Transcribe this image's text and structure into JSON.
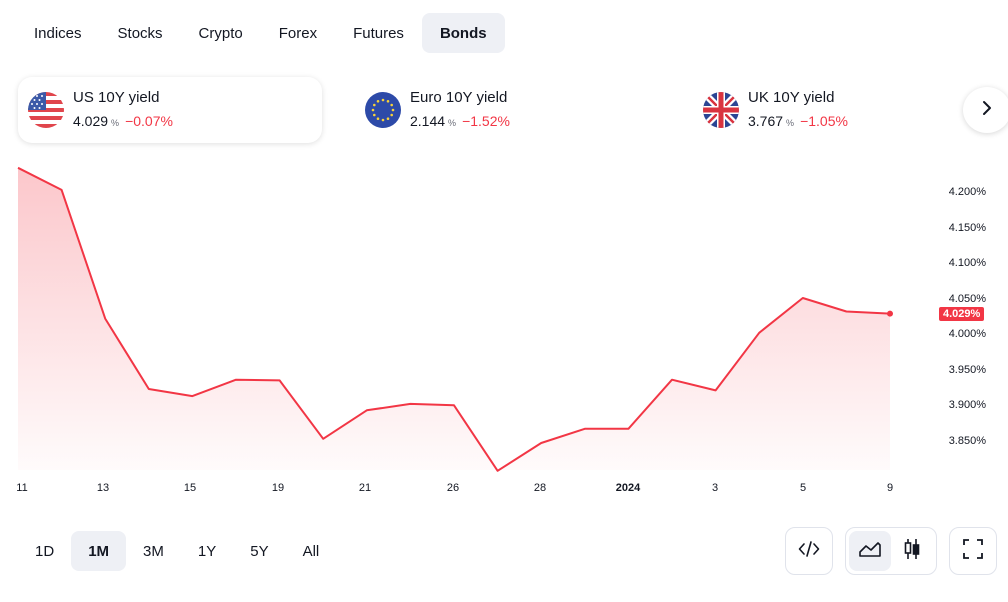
{
  "tabs": [
    {
      "label": "Indices"
    },
    {
      "label": "Stocks"
    },
    {
      "label": "Crypto"
    },
    {
      "label": "Forex"
    },
    {
      "label": "Futures"
    },
    {
      "label": "Bonds",
      "active": true
    }
  ],
  "cards": [
    {
      "name": "US 10Y yield",
      "value": "4.029",
      "unit": "%",
      "change": "−0.07%",
      "flag": "us-flag-icon",
      "active": true
    },
    {
      "name": "Euro 10Y yield",
      "value": "2.144",
      "unit": "%",
      "change": "−1.52%",
      "flag": "eu-flag-icon"
    },
    {
      "name": "UK 10Y yield",
      "value": "3.767",
      "unit": "%",
      "change": "−1.05%",
      "flag": "uk-flag-icon"
    }
  ],
  "colors": {
    "line": "#f23645",
    "accent_bg": "#eef0f5",
    "negative": "#f23645"
  },
  "chart_data": {
    "type": "area",
    "x_tick_labels": [
      "11",
      "13",
      "15",
      "19",
      "21",
      "26",
      "28",
      "2024",
      "3",
      "5",
      "9"
    ],
    "y_tick_labels": [
      "4.200%",
      "4.150%",
      "4.100%",
      "4.050%",
      "4.000%",
      "3.950%",
      "3.900%",
      "3.850%"
    ],
    "ylim": [
      3.795,
      4.245
    ],
    "last_price_label": "4.029%",
    "series": [
      {
        "values": [
          4.234,
          4.203,
          4.022,
          3.923,
          3.913,
          3.936,
          3.935,
          3.853,
          3.893,
          3.902,
          3.9,
          3.808,
          3.847,
          3.867,
          3.867,
          3.936,
          3.921,
          4.002,
          4.051,
          4.032,
          4.029
        ]
      }
    ]
  },
  "ranges": [
    {
      "label": "1D"
    },
    {
      "label": "1M",
      "active": true
    },
    {
      "label": "3M"
    },
    {
      "label": "1Y"
    },
    {
      "label": "5Y"
    },
    {
      "label": "All"
    }
  ],
  "toolbar": {
    "embed_icon": "code-icon",
    "area_icon": "area-chart-icon",
    "candle_icon": "candlestick-icon",
    "fullscreen_icon": "fullscreen-icon"
  }
}
